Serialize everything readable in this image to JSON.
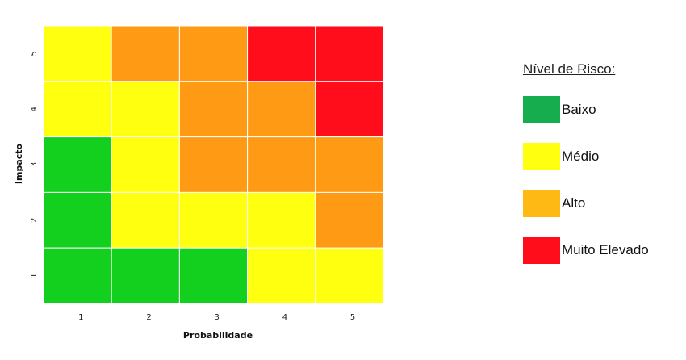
{
  "chart_data": {
    "type": "heatmap",
    "title": "",
    "xlabel": "Probabilidade",
    "ylabel": "Impacto",
    "x_categories": [
      "1",
      "2",
      "3",
      "4",
      "5"
    ],
    "y_categories": [
      "1",
      "2",
      "3",
      "4",
      "5"
    ],
    "cells": [
      {
        "x": "1",
        "y": "5",
        "level": "medio"
      },
      {
        "x": "2",
        "y": "5",
        "level": "alto"
      },
      {
        "x": "3",
        "y": "5",
        "level": "alto"
      },
      {
        "x": "4",
        "y": "5",
        "level": "muito_elevado"
      },
      {
        "x": "5",
        "y": "5",
        "level": "muito_elevado"
      },
      {
        "x": "1",
        "y": "4",
        "level": "medio"
      },
      {
        "x": "2",
        "y": "4",
        "level": "medio"
      },
      {
        "x": "3",
        "y": "4",
        "level": "alto"
      },
      {
        "x": "4",
        "y": "4",
        "level": "alto"
      },
      {
        "x": "5",
        "y": "4",
        "level": "muito_elevado"
      },
      {
        "x": "1",
        "y": "3",
        "level": "baixo"
      },
      {
        "x": "2",
        "y": "3",
        "level": "medio"
      },
      {
        "x": "3",
        "y": "3",
        "level": "alto"
      },
      {
        "x": "4",
        "y": "3",
        "level": "alto"
      },
      {
        "x": "5",
        "y": "3",
        "level": "alto"
      },
      {
        "x": "1",
        "y": "2",
        "level": "baixo"
      },
      {
        "x": "2",
        "y": "2",
        "level": "medio"
      },
      {
        "x": "3",
        "y": "2",
        "level": "medio"
      },
      {
        "x": "4",
        "y": "2",
        "level": "medio"
      },
      {
        "x": "5",
        "y": "2",
        "level": "alto"
      },
      {
        "x": "1",
        "y": "1",
        "level": "baixo"
      },
      {
        "x": "2",
        "y": "1",
        "level": "baixo"
      },
      {
        "x": "3",
        "y": "1",
        "level": "baixo"
      },
      {
        "x": "4",
        "y": "1",
        "level": "medio"
      },
      {
        "x": "5",
        "y": "1",
        "level": "medio"
      }
    ],
    "cell_colors": {
      "baixo": "#13CF1E",
      "medio": "#FFFF10",
      "alto": "#FF9A14",
      "muito_elevado": "#FF0D1A"
    },
    "legend_placement": "right",
    "grid": true
  },
  "legend": {
    "title": "Nível de Risco:",
    "items": [
      {
        "key": "baixo",
        "label": "Baixo",
        "color": "#16AD4E"
      },
      {
        "key": "medio",
        "label": "Médio",
        "color": "#FFFF10"
      },
      {
        "key": "alto",
        "label": "Alto",
        "color": "#FFB915"
      },
      {
        "key": "muito_elevado",
        "label": "Muito Elevado",
        "color": "#FF0D1A"
      }
    ]
  }
}
